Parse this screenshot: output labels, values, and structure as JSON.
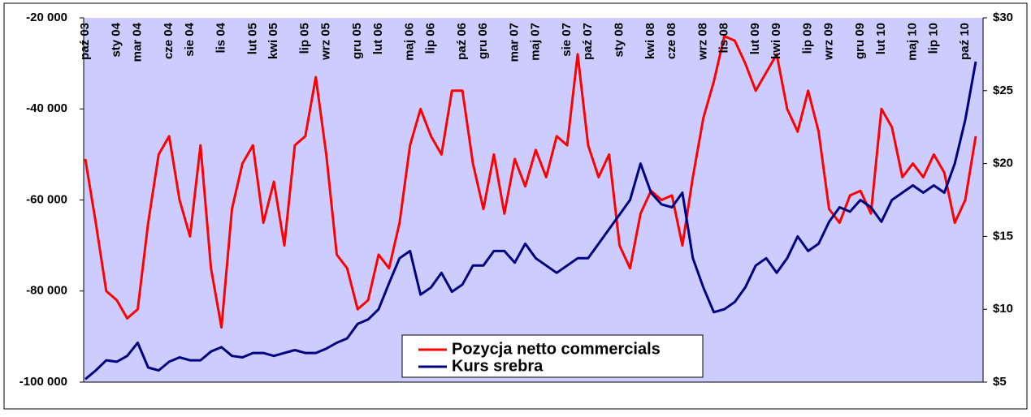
{
  "chart_data": {
    "type": "line",
    "categories": [
      "paź 03",
      null,
      null,
      "sty 04",
      null,
      "mar 04",
      null,
      null,
      "cze 04",
      null,
      "sie 04",
      null,
      null,
      "lis 04",
      null,
      null,
      "lut 05",
      null,
      "kwi 05",
      null,
      null,
      "lip 05",
      null,
      "wrz 05",
      null,
      null,
      "gru 05",
      null,
      "lut 06",
      null,
      null,
      "maj 06",
      null,
      "lip 06",
      null,
      null,
      "paź 06",
      null,
      "gru 06",
      null,
      null,
      "mar 07",
      null,
      "maj 07",
      null,
      null,
      "sie 07",
      null,
      "paź 07",
      null,
      null,
      "sty 08",
      null,
      null,
      "kwi 08",
      null,
      "cze 08",
      null,
      null,
      "wrz 08",
      null,
      "lis 08",
      null,
      null,
      "lut 09",
      null,
      "kwi 09",
      null,
      null,
      "lip 09",
      null,
      "wrz 09",
      null,
      null,
      "gru 09",
      null,
      "lut 10",
      null,
      null,
      "maj 10",
      null,
      "lip 10",
      null,
      null,
      "paź 10",
      null
    ],
    "series": [
      {
        "name": "Pozycja netto commercials",
        "color": "#ff0000",
        "values": [
          -51000,
          -65000,
          -80000,
          -82000,
          -86000,
          -84000,
          -65000,
          -50000,
          -46000,
          -60000,
          -68000,
          -48000,
          -75000,
          -88000,
          -62000,
          -52000,
          -48000,
          -65000,
          -56000,
          -70000,
          -48000,
          -46000,
          -33000,
          -50000,
          -72000,
          -75000,
          -84000,
          -82000,
          -72000,
          -75000,
          -65000,
          -48000,
          -40000,
          -46000,
          -50000,
          -36000,
          -36000,
          -52000,
          -62000,
          -50000,
          -63000,
          -51000,
          -57000,
          -49000,
          -55000,
          -46000,
          -48000,
          -28000,
          -48000,
          -55000,
          -50000,
          -70000,
          -75000,
          -63000,
          -58000,
          -60000,
          -59000,
          -70000,
          -55000,
          -42000,
          -34000,
          -24000,
          -25000,
          -30000,
          -36000,
          -32000,
          -28000,
          -40000,
          -45000,
          -36000,
          -45000,
          -62000,
          -65000,
          -59000,
          -58000,
          -63000,
          -40000,
          -44000,
          -55000,
          -52000,
          -55000,
          -50000,
          -54000,
          -65000,
          -60000,
          -46000
        ]
      },
      {
        "name": "Kurs srebra",
        "color": "#000080",
        "axis": "y2",
        "values": [
          5.2,
          5.8,
          6.5,
          6.4,
          6.8,
          7.7,
          6.0,
          5.8,
          6.4,
          6.7,
          6.5,
          6.5,
          7.1,
          7.4,
          6.8,
          6.7,
          7.0,
          7.0,
          6.8,
          7.0,
          7.2,
          7.0,
          7.0,
          7.3,
          7.7,
          8.0,
          9.0,
          9.3,
          10.0,
          11.8,
          13.5,
          14.0,
          11.0,
          11.5,
          12.5,
          11.2,
          11.7,
          13.0,
          13.0,
          14.0,
          14.0,
          13.2,
          14.5,
          13.5,
          13.0,
          12.5,
          13.0,
          13.5,
          13.5,
          14.5,
          15.5,
          16.5,
          17.5,
          20.0,
          18.0,
          17.2,
          17.0,
          18.0,
          13.5,
          11.5,
          9.8,
          10.0,
          10.5,
          11.5,
          13.0,
          13.5,
          12.5,
          13.5,
          15.0,
          14.0,
          14.5,
          16.0,
          17.0,
          16.7,
          17.5,
          17.0,
          16.0,
          17.5,
          18.0,
          18.5,
          18.0,
          18.5,
          18.0,
          20.0,
          23.0,
          27.0
        ]
      }
    ],
    "ylim": [
      -100000,
      -20000
    ],
    "yticks": [
      {
        "value": -100000,
        "label": "-100 000"
      },
      {
        "value": -80000,
        "label": "-80 000"
      },
      {
        "value": -60000,
        "label": "-60 000"
      },
      {
        "value": -40000,
        "label": "-40 000"
      },
      {
        "value": -20000,
        "label": "-20 000"
      }
    ],
    "y2lim": [
      5,
      30
    ],
    "y2ticks": [
      {
        "value": 5,
        "label": "$5"
      },
      {
        "value": 10,
        "label": "$10"
      },
      {
        "value": 15,
        "label": "$15"
      },
      {
        "value": 20,
        "label": "$20"
      },
      {
        "value": 25,
        "label": "$25"
      },
      {
        "value": 30,
        "label": "$30"
      }
    ]
  }
}
